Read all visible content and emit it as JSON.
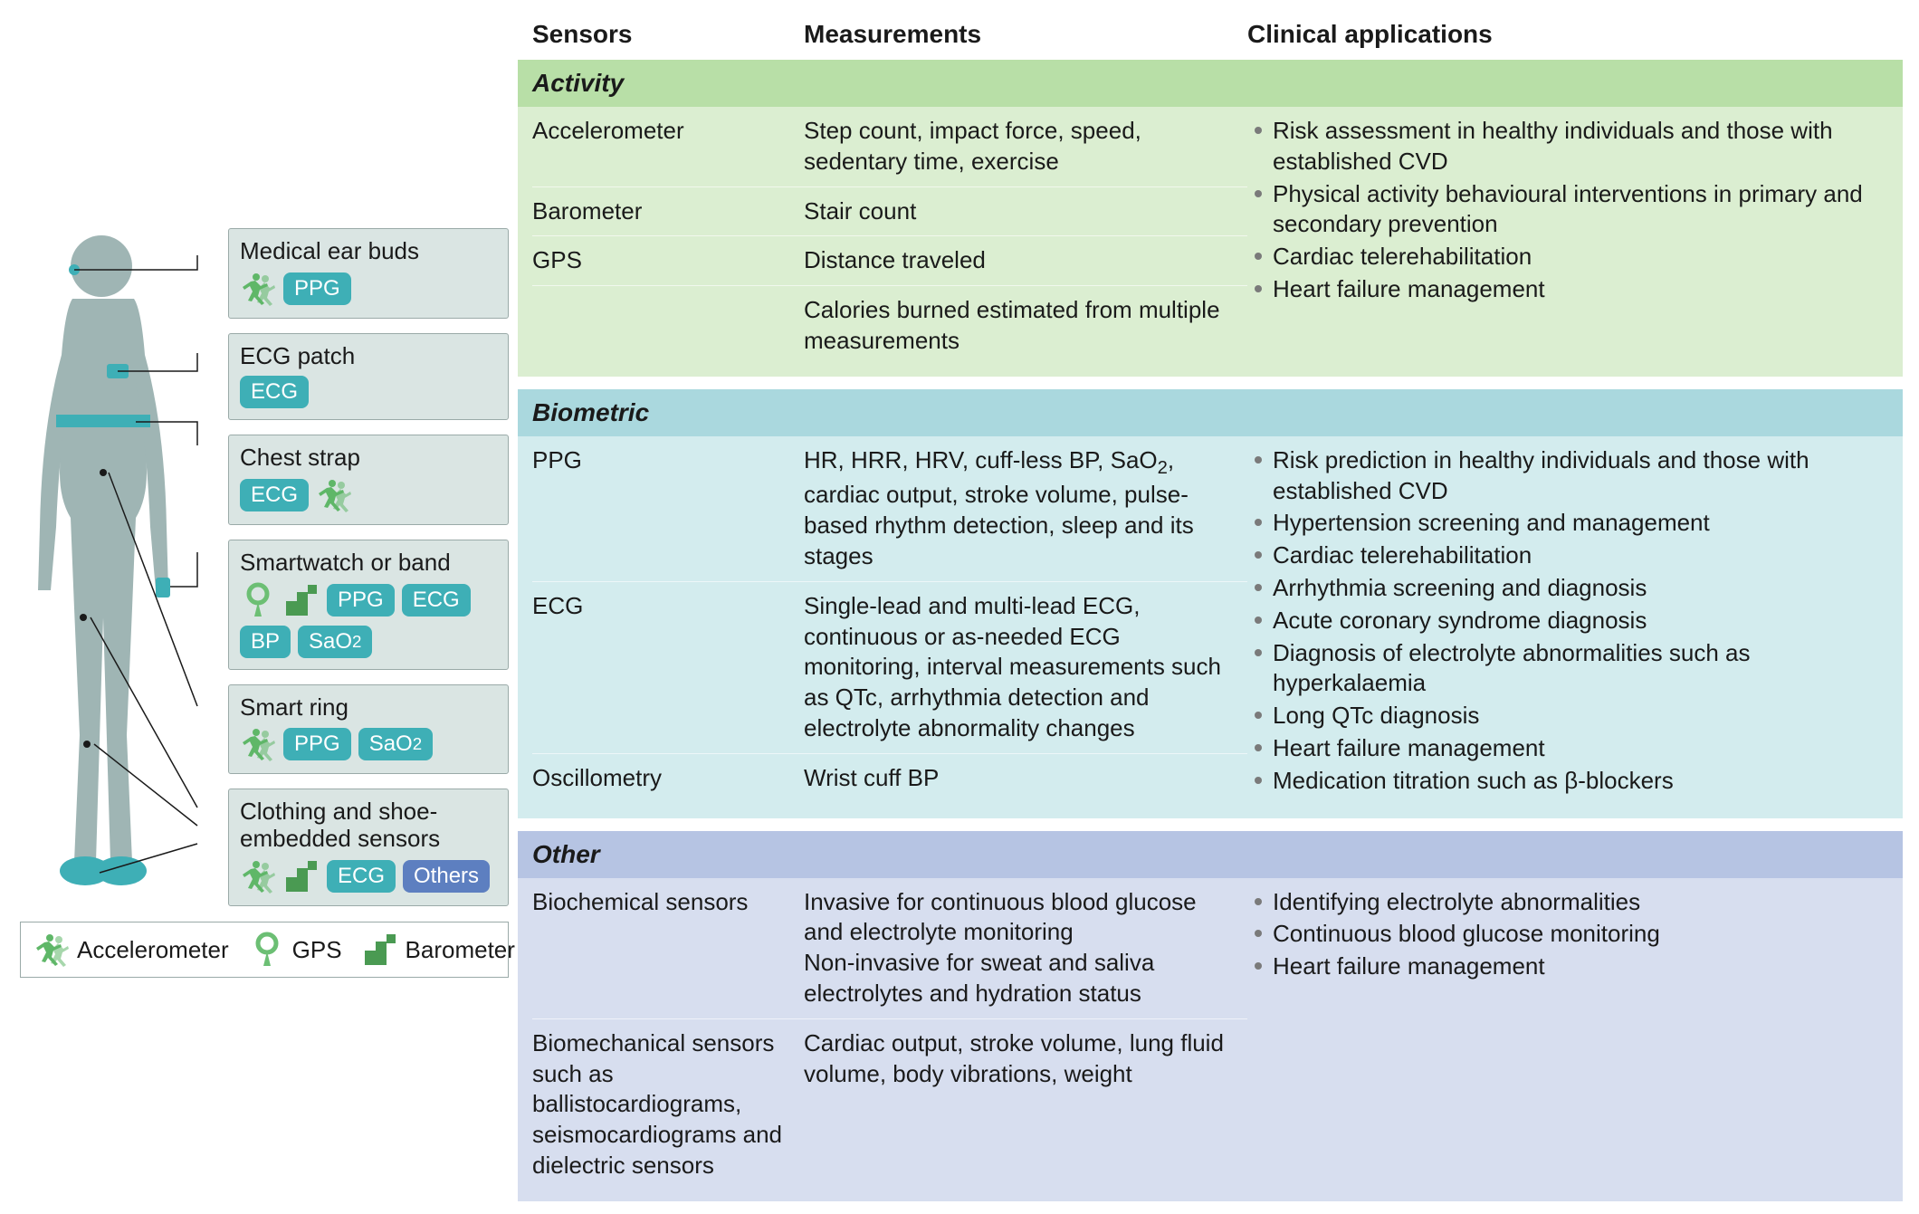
{
  "colors": {
    "card_bg": "#dae5e3",
    "card_border": "#9aaaa8",
    "teal_badge": "#3eafb6",
    "blue_badge": "#5d7fc0",
    "runner_green": "#5fb768",
    "gps_green": "#6cbf74",
    "barometer_green": "#4a9a52",
    "activity_header": "#b8dfa7",
    "activity_body": "#dbeed1",
    "biometric_header": "#aad8de",
    "biometric_body": "#d3ecee",
    "other_header": "#b6c4e3",
    "other_body": "#d7deef",
    "row_divider": "rgba(255,255,255,0.6)",
    "bullet": "#7a7a7a",
    "text": "#1a1a1a",
    "body_fill": "#9fb5b4",
    "body_accent": "#3eafb6"
  },
  "typography": {
    "base_pt": 20,
    "header_pt": 21,
    "weight_header": 700
  },
  "devices": [
    {
      "title": "Medical ear buds",
      "icons": [
        "runner"
      ],
      "badges": [
        {
          "label": "PPG",
          "color": "teal"
        }
      ]
    },
    {
      "title": "ECG patch",
      "icons": [],
      "badges": [
        {
          "label": "ECG",
          "color": "teal"
        }
      ]
    },
    {
      "title": "Chest strap",
      "icons": [],
      "badges": [
        {
          "label": "ECG",
          "color": "teal"
        }
      ],
      "trailing_icons": [
        "runner"
      ]
    },
    {
      "title": "Smartwatch or band",
      "icons": [
        "gps",
        "barometer"
      ],
      "badges": [
        {
          "label": "PPG",
          "color": "teal"
        },
        {
          "label": "ECG",
          "color": "teal"
        },
        {
          "label": "BP",
          "color": "teal"
        },
        {
          "label": "SaO₂",
          "color": "teal"
        }
      ]
    },
    {
      "title": "Smart ring",
      "icons": [
        "runner"
      ],
      "badges": [
        {
          "label": "PPG",
          "color": "teal"
        },
        {
          "label": "SaO₂",
          "color": "teal"
        }
      ]
    },
    {
      "title": "Clothing and shoe-embedded sensors",
      "icons": [
        "runner",
        "barometer"
      ],
      "badges": [
        {
          "label": "ECG",
          "color": "teal"
        },
        {
          "label": "Others",
          "color": "blue"
        }
      ]
    }
  ],
  "legend": [
    {
      "icon": "runner",
      "label": "Accelerometer"
    },
    {
      "icon": "gps",
      "label": "GPS"
    },
    {
      "icon": "barometer",
      "label": "Barometer"
    }
  ],
  "table": {
    "headers": {
      "sensors": "Sensors",
      "measurements": "Measurements",
      "clinical": "Clinical applications"
    },
    "sections": [
      {
        "name": "Activity",
        "header_color": "activity_header",
        "body_color": "activity_body",
        "rows": [
          {
            "sensor": "Accelerometer",
            "measurement": "Step count, impact force, speed, sedentary time, exercise"
          },
          {
            "sensor": "Barometer",
            "measurement": "Stair count"
          },
          {
            "sensor": "GPS",
            "measurement": "Distance traveled"
          },
          {
            "sensor": "",
            "measurement": "Calories burned estimated from multiple measurements"
          }
        ],
        "clinical": [
          "Risk assessment in healthy individuals and those with established CVD",
          "Physical activity behavioural interventions in primary and secondary prevention",
          "Cardiac telerehabilitation",
          "Heart failure management"
        ]
      },
      {
        "name": "Biometric",
        "header_color": "biometric_header",
        "body_color": "biometric_body",
        "rows": [
          {
            "sensor": "PPG",
            "measurement": "HR, HRR, HRV, cuff-less BP, SaO₂, cardiac output, stroke volume, pulse-based rhythm detection, sleep and its stages"
          },
          {
            "sensor": "ECG",
            "measurement": "Single-lead and multi-lead ECG, continuous or as-needed ECG monitoring, interval measurements such as QTc, arrhythmia detection and electrolyte abnormality changes"
          },
          {
            "sensor": "Oscillometry",
            "measurement": "Wrist cuff BP"
          }
        ],
        "clinical": [
          "Risk prediction in healthy individuals and those with established CVD",
          "Hypertension screening and management",
          "Cardiac telerehabilitation",
          "Arrhythmia screening and diagnosis",
          "Acute coronary syndrome diagnosis",
          "Diagnosis of electrolyte abnormalities such as hyperkalaemia",
          "Long QTc diagnosis",
          "Heart failure management",
          "Medication titration such as β-blockers"
        ]
      },
      {
        "name": "Other",
        "header_color": "other_header",
        "body_color": "other_body",
        "rows": [
          {
            "sensor": "Biochemical sensors",
            "measurement": "Invasive for continuous blood glucose and electrolyte monitoring\nNon-invasive for sweat and saliva electrolytes and hydration status"
          },
          {
            "sensor": "Biomechanical sensors such as ballistocardiograms, seismocardiograms and dielectric sensors",
            "measurement": "Cardiac output, stroke volume, lung fluid volume, body vibrations, weight"
          }
        ],
        "clinical": [
          "Identifying electrolyte abnormalities",
          "Continuous blood glucose monitoring",
          "Heart failure management"
        ]
      }
    ]
  }
}
